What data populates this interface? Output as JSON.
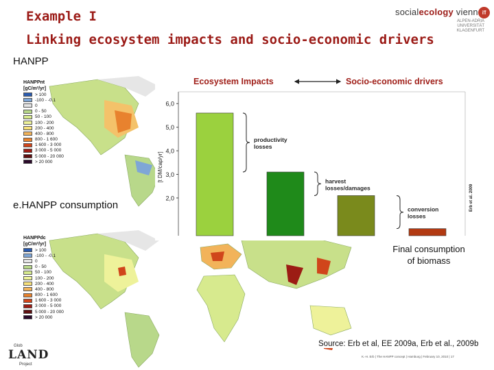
{
  "slide": {
    "title_line1": "Example I",
    "title_line2": "Linking ecosystem impacts and socio-economic drivers"
  },
  "logo": {
    "prefix": "social",
    "brand": "ecology",
    "suffix": "vienna",
    "seal": "iff",
    "sub_lines": [
      "ALPEN-ADRIA",
      "UNIVERSITÄT",
      "KLAGENFURT"
    ]
  },
  "sections": {
    "hanpp_label": "HANPP",
    "ehanpp_label": "e.HANPP consumption"
  },
  "legend_hanpp": {
    "title_line1": "HANPPnt",
    "title_line2": "[gC/m²/yr]",
    "items": [
      {
        "label": "> 100",
        "color": "#2a5bb0"
      },
      {
        "label": "-100 - -0.1",
        "color": "#7fa6d6"
      },
      {
        "label": "0",
        "color": "#e6e6e6"
      },
      {
        "label": "0 - 50",
        "color": "#b8d88a"
      },
      {
        "label": "50 - 100",
        "color": "#d7ea8e"
      },
      {
        "label": "100 - 200",
        "color": "#eef29a"
      },
      {
        "label": "200 - 400",
        "color": "#f7e07a"
      },
      {
        "label": "400 - 800",
        "color": "#f2b35a"
      },
      {
        "label": "800 - 1 600",
        "color": "#e8822e"
      },
      {
        "label": "1 600 - 3 000",
        "color": "#d0451b"
      },
      {
        "label": "3 000 - 5 000",
        "color": "#9c1c14"
      },
      {
        "label": "5 000 - 20 000",
        "color": "#5e0f10"
      },
      {
        "label": "> 20 000",
        "color": "#2b0a2a"
      }
    ]
  },
  "legend_ehanpp": {
    "title_line1": "HANPPdc",
    "title_line2": "[gC/m²/yr]",
    "items": [
      {
        "label": "> 100",
        "color": "#2a5bb0"
      },
      {
        "label": "-100 - -0.1",
        "color": "#7fa6d6"
      },
      {
        "label": "0",
        "color": "#e6e6e6"
      },
      {
        "label": "0 - 50",
        "color": "#b8d88a"
      },
      {
        "label": "50 - 100",
        "color": "#d7ea8e"
      },
      {
        "label": "100 - 200",
        "color": "#eef29a"
      },
      {
        "label": "200 - 400",
        "color": "#f7e07a"
      },
      {
        "label": "400 - 800",
        "color": "#f2b35a"
      },
      {
        "label": "800 - 1 600",
        "color": "#e8822e"
      },
      {
        "label": "1 600 - 3 000",
        "color": "#d0451b"
      },
      {
        "label": "3 000 - 5 000",
        "color": "#9c1c14"
      },
      {
        "label": "5 000 - 20 000",
        "color": "#5e0f10"
      },
      {
        "label": "> 20 000",
        "color": "#2b0a2a"
      }
    ]
  },
  "chart_data": {
    "type": "bar",
    "title": "",
    "header_left": "Ecosystem Impacts",
    "header_right": "Socio-economic drivers",
    "ylabel": "[t DM/cap/yr]",
    "ylim": [
      0.4,
      6.5
    ],
    "yticks": [
      "6,0",
      "5,0",
      "4,0",
      "3,0",
      "2,0"
    ],
    "ytick_values": [
      6,
      5,
      4,
      3,
      2
    ],
    "categories": [
      "productivity losses",
      "harvest losses/damages",
      "conversion losses",
      "Final consumption of biomass"
    ],
    "values": [
      5.6,
      3.1,
      2.1,
      0.7
    ],
    "bar_colors": [
      "#9bd13e",
      "#1f8a1a",
      "#7a8a1c",
      "#b23a12"
    ],
    "annotations": [
      "productivity\nlosses",
      "harvest\nlosses/damages",
      "conversion\nlosses"
    ],
    "side_label": "Erb et al. 2009",
    "final_label": "Final consumption of biomass"
  },
  "source": "Source: Erb et al, EE  2009a, Erb et al., 2009b",
  "footer": "K.-H. Erb | The HANPP concept | Hamburg | February 10, 2010 | 17",
  "land_logo": {
    "small": "Glob",
    "big": "LAND",
    "sub": "Project"
  }
}
